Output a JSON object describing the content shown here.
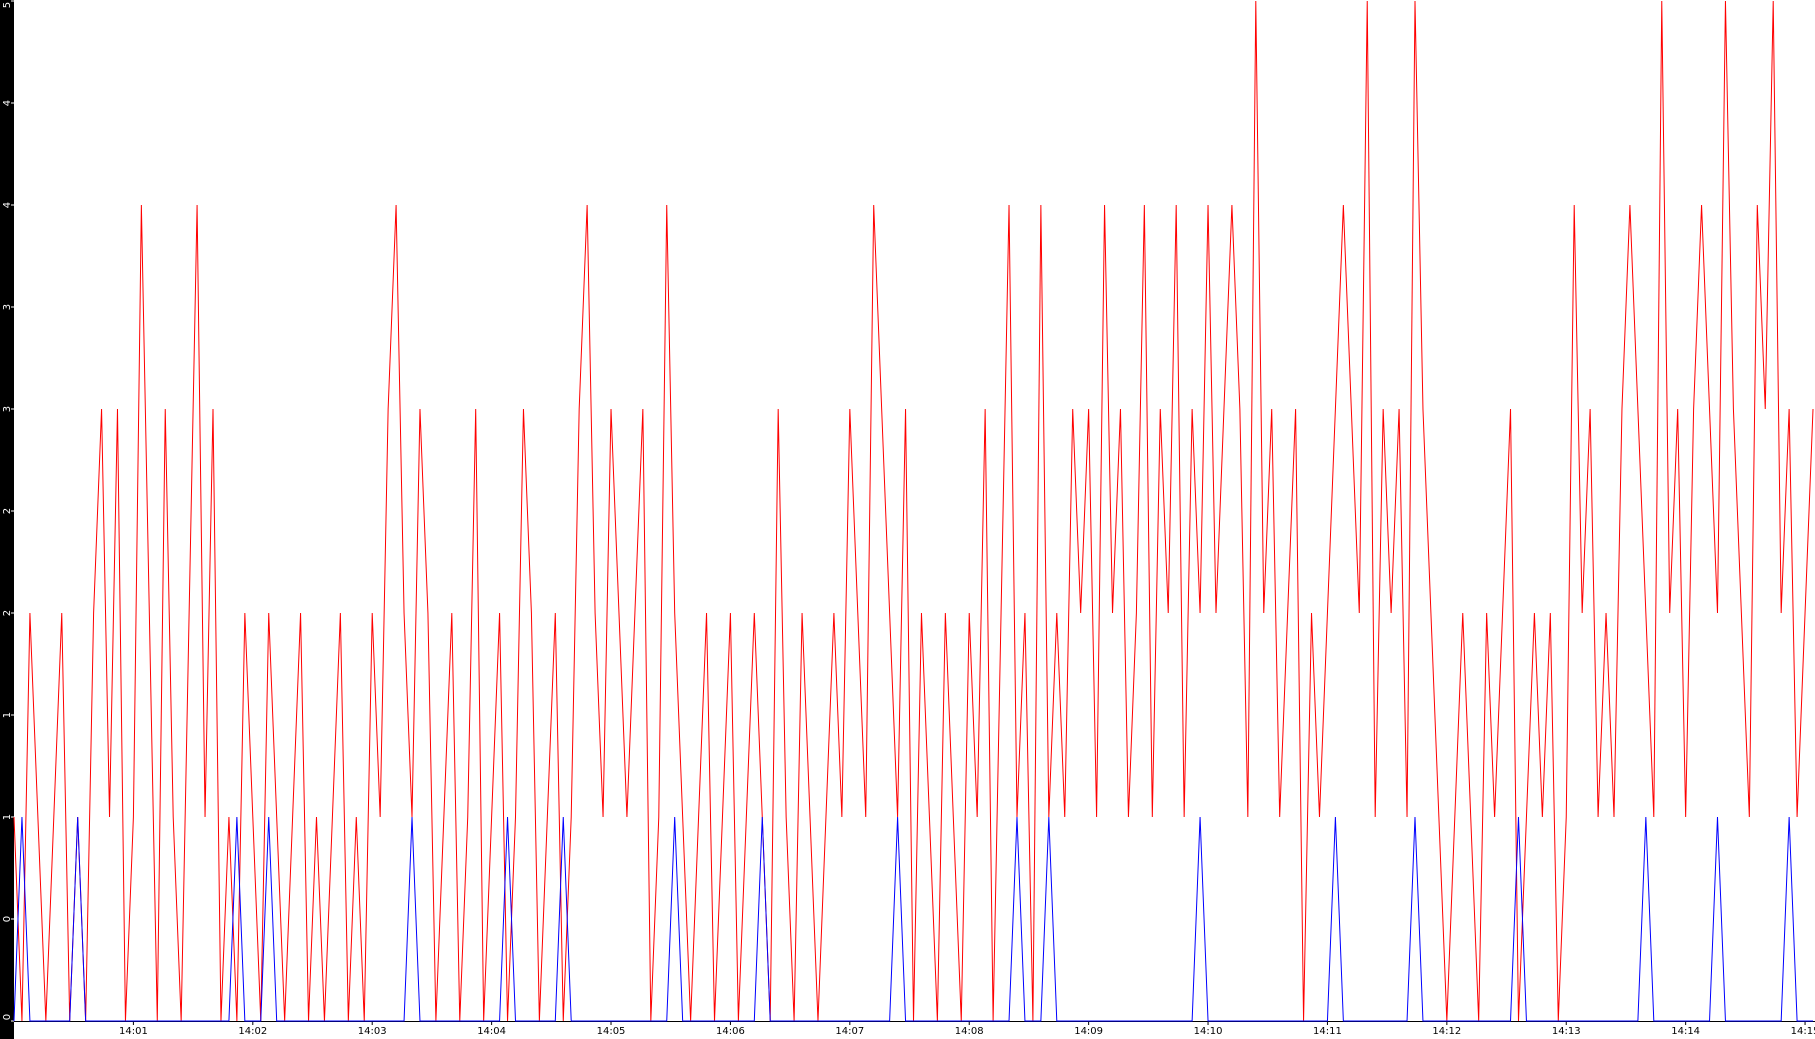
{
  "chart_data": {
    "type": "line",
    "x": [
      0,
      4,
      8,
      12,
      16,
      20,
      24,
      28,
      32,
      36,
      40,
      44,
      48,
      52,
      56,
      60,
      64,
      68,
      72,
      76,
      80,
      84,
      88,
      92,
      96,
      100,
      104,
      108,
      112,
      116,
      120,
      124,
      128,
      132,
      136,
      140,
      144,
      148,
      152,
      156,
      160,
      164,
      168,
      172,
      176,
      180,
      184,
      188,
      192,
      196,
      200,
      204,
      208,
      212,
      216,
      220,
      224,
      228,
      232,
      236,
      240,
      244,
      248,
      252,
      256,
      260,
      264,
      268,
      272,
      276,
      280,
      284,
      288,
      292,
      296,
      300,
      304,
      308,
      312,
      316,
      320,
      324,
      328,
      332,
      336,
      340,
      344,
      348,
      352,
      356,
      360,
      364,
      368,
      372,
      376,
      380,
      384,
      388,
      392,
      396,
      400,
      404,
      408,
      412,
      416,
      420,
      424,
      428,
      432,
      436,
      440,
      444,
      448,
      452,
      456,
      460,
      464,
      468,
      472,
      476,
      480,
      484,
      488,
      492,
      496,
      500,
      504,
      508,
      512,
      516,
      520,
      524,
      528,
      532,
      536,
      540,
      544,
      548,
      552,
      556,
      560,
      564,
      568,
      572,
      576,
      580,
      584,
      588,
      592,
      596,
      600,
      604,
      608,
      612,
      616,
      620,
      624,
      628,
      632,
      636,
      640,
      644,
      648,
      652,
      656,
      660,
      664,
      668,
      672,
      676,
      680,
      684,
      688,
      692,
      696,
      700,
      704,
      708,
      712,
      716,
      720,
      724,
      728,
      732,
      736,
      740,
      744,
      748,
      752,
      756,
      760,
      764,
      768,
      772,
      776,
      780,
      784,
      788,
      792,
      796,
      800,
      804,
      808,
      812,
      816,
      820,
      824,
      828,
      832,
      836,
      840,
      844,
      848,
      852,
      856,
      860,
      864,
      868,
      872,
      876,
      880,
      884,
      888,
      892,
      896,
      900,
      904
    ],
    "series": [
      {
        "color": "#ff0000",
        "values": [
          1,
          0,
          2,
          1,
          0,
          1,
          2,
          0,
          1,
          0,
          2,
          3,
          1,
          3,
          0,
          1,
          4,
          2,
          0,
          3,
          1,
          0,
          2,
          4,
          1,
          3,
          0,
          1,
          0,
          2,
          1,
          0,
          2,
          1,
          0,
          1,
          2,
          0,
          1,
          0,
          1,
          2,
          0,
          1,
          0,
          2,
          1,
          3,
          4,
          2,
          1,
          3,
          2,
          0,
          1,
          2,
          0,
          1,
          3,
          0,
          1,
          2,
          0,
          1,
          3,
          2,
          0,
          1,
          2,
          0,
          1,
          3,
          4,
          2,
          1,
          3,
          2,
          1,
          2,
          3,
          0,
          1,
          4,
          2,
          1,
          0,
          1,
          2,
          0,
          1,
          2,
          0,
          1,
          2,
          1,
          0,
          3,
          1,
          0,
          2,
          1,
          0,
          1,
          2,
          1,
          3,
          2,
          1,
          4,
          3,
          2,
          1,
          3,
          0,
          2,
          1,
          0,
          2,
          1,
          0,
          2,
          1,
          3,
          0,
          2,
          4,
          1,
          2,
          0,
          4,
          1,
          2,
          1,
          3,
          2,
          3,
          1,
          4,
          2,
          3,
          1,
          2,
          4,
          1,
          3,
          2,
          4,
          1,
          3,
          2,
          4,
          2,
          3,
          4,
          3,
          1,
          5,
          2,
          3,
          1,
          2,
          3,
          0,
          2,
          1,
          2,
          3,
          4,
          3,
          2,
          5,
          1,
          3,
          2,
          3,
          1,
          5,
          3,
          2,
          1,
          0,
          1,
          2,
          1,
          0,
          2,
          1,
          2,
          3,
          0,
          1,
          2,
          1,
          2,
          0,
          1,
          4,
          2,
          3,
          1,
          2,
          1,
          3,
          4,
          3,
          2,
          1,
          5,
          2,
          3,
          1,
          3,
          4,
          3,
          2,
          5,
          3,
          2,
          1,
          4,
          3,
          5,
          2,
          3,
          1,
          2,
          3
        ]
      },
      {
        "color": "#0000ff",
        "values": [
          0,
          1,
          0,
          0,
          0,
          0,
          0,
          0,
          1,
          0,
          0,
          0,
          0,
          0,
          0,
          0,
          0,
          0,
          0,
          0,
          0,
          0,
          0,
          0,
          0,
          0,
          0,
          0,
          1,
          0,
          0,
          0,
          1,
          0,
          0,
          0,
          0,
          0,
          0,
          0,
          0,
          0,
          0,
          0,
          0,
          0,
          0,
          0,
          0,
          0,
          1,
          0,
          0,
          0,
          0,
          0,
          0,
          0,
          0,
          0,
          0,
          0,
          1,
          0,
          0,
          0,
          0,
          0,
          0,
          1,
          0,
          0,
          0,
          0,
          0,
          0,
          0,
          0,
          0,
          0,
          0,
          0,
          0,
          1,
          0,
          0,
          0,
          0,
          0,
          0,
          0,
          0,
          0,
          0,
          1,
          0,
          0,
          0,
          0,
          0,
          0,
          0,
          0,
          0,
          0,
          0,
          0,
          0,
          0,
          0,
          0,
          1,
          0,
          0,
          0,
          0,
          0,
          0,
          0,
          0,
          0,
          0,
          0,
          0,
          0,
          0,
          1,
          0,
          0,
          0,
          1,
          0,
          0,
          0,
          0,
          0,
          0,
          0,
          0,
          0,
          0,
          0,
          0,
          0,
          0,
          0,
          0,
          0,
          0,
          1,
          0,
          0,
          0,
          0,
          0,
          0,
          0,
          0,
          0,
          0,
          0,
          0,
          0,
          0,
          0,
          0,
          1,
          0,
          0,
          0,
          0,
          0,
          0,
          0,
          0,
          0,
          1,
          0,
          0,
          0,
          0,
          0,
          0,
          0,
          0,
          0,
          0,
          0,
          0,
          1,
          0,
          0,
          0,
          0,
          0,
          0,
          0,
          0,
          0,
          0,
          0,
          0,
          0,
          0,
          0,
          1,
          0,
          0,
          0,
          0,
          0,
          0,
          0,
          0,
          1,
          0,
          0,
          0,
          0,
          0,
          0,
          0,
          0,
          1,
          0,
          0,
          0
        ]
      }
    ],
    "xlim": [
      0,
      905
    ],
    "xticks": [
      {
        "value": 60,
        "label": "14:01"
      },
      {
        "value": 120,
        "label": "14:02"
      },
      {
        "value": 180,
        "label": "14:03"
      },
      {
        "value": 240,
        "label": "14:04"
      },
      {
        "value": 300,
        "label": "14:05"
      },
      {
        "value": 360,
        "label": "14:06"
      },
      {
        "value": 420,
        "label": "14:07"
      },
      {
        "value": 480,
        "label": "14:08"
      },
      {
        "value": 540,
        "label": "14:09"
      },
      {
        "value": 600,
        "label": "14:10"
      },
      {
        "value": 660,
        "label": "14:11"
      },
      {
        "value": 720,
        "label": "14:12"
      },
      {
        "value": 780,
        "label": "14:13"
      },
      {
        "value": 840,
        "label": "14:14"
      },
      {
        "value": 900,
        "label": "14:15"
      }
    ],
    "ylim": [
      0,
      5
    ],
    "yticks": [
      0,
      {
        "value": 0.5,
        "label": "0"
      },
      1,
      {
        "value": 1.5,
        "label": "1"
      },
      2,
      {
        "value": 2.5,
        "label": "2"
      },
      3,
      {
        "value": 3.5,
        "label": "3"
      },
      4,
      {
        "value": 4.5,
        "label": "4"
      },
      5
    ]
  }
}
